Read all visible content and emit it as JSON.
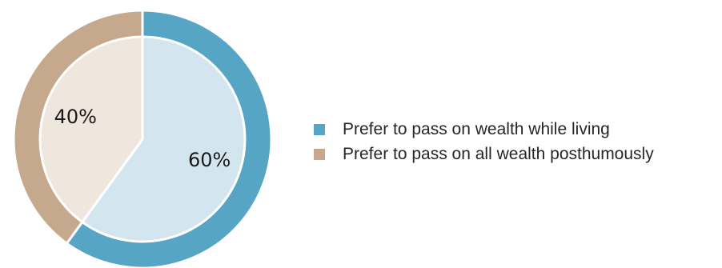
{
  "chart_data": {
    "type": "pie",
    "style": "donut-outer-ring",
    "legend_position": "right",
    "slices": [
      {
        "name": "Prefer to pass on wealth while living",
        "value": 60,
        "label": "60%",
        "ring_color": "#57a5c5",
        "fill_color": "#d3e6ef"
      },
      {
        "name": "Prefer to pass on all wealth posthumously",
        "value": 40,
        "label": "40%",
        "ring_color": "#c6a88d",
        "fill_color": "#efe6de"
      }
    ]
  }
}
